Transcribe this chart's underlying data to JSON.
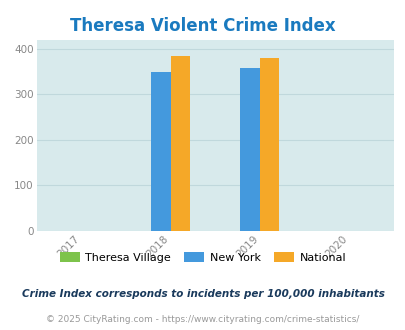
{
  "title": "Theresa Violent Crime Index",
  "title_color": "#1a7abf",
  "bar_width": 0.22,
  "groups": {
    "2018": {
      "theresa": 0,
      "new_york": 350,
      "national": 383
    },
    "2019": {
      "theresa": 0,
      "new_york": 358,
      "national": 379
    }
  },
  "colors": {
    "theresa": "#7dc34b",
    "new_york": "#4499dd",
    "national": "#f5a828"
  },
  "ylim": [
    0,
    420
  ],
  "yticks": [
    0,
    100,
    200,
    300,
    400
  ],
  "xlim": [
    2016.5,
    2020.5
  ],
  "xticks": [
    2017,
    2018,
    2019,
    2020
  ],
  "bg_color": "#d8eaec",
  "fig_bg": "#ffffff",
  "legend_labels": [
    "Theresa Village",
    "New York",
    "National"
  ],
  "legend_colors": [
    "#7dc34b",
    "#4499dd",
    "#f5a828"
  ],
  "footnote1": "Crime Index corresponds to incidents per 100,000 inhabitants",
  "footnote2": "© 2025 CityRating.com - https://www.cityrating.com/crime-statistics/",
  "footnote1_color": "#1a3a5c",
  "footnote2_color": "#999999",
  "grid_color": "#c0d8dc",
  "tick_color": "#888888"
}
